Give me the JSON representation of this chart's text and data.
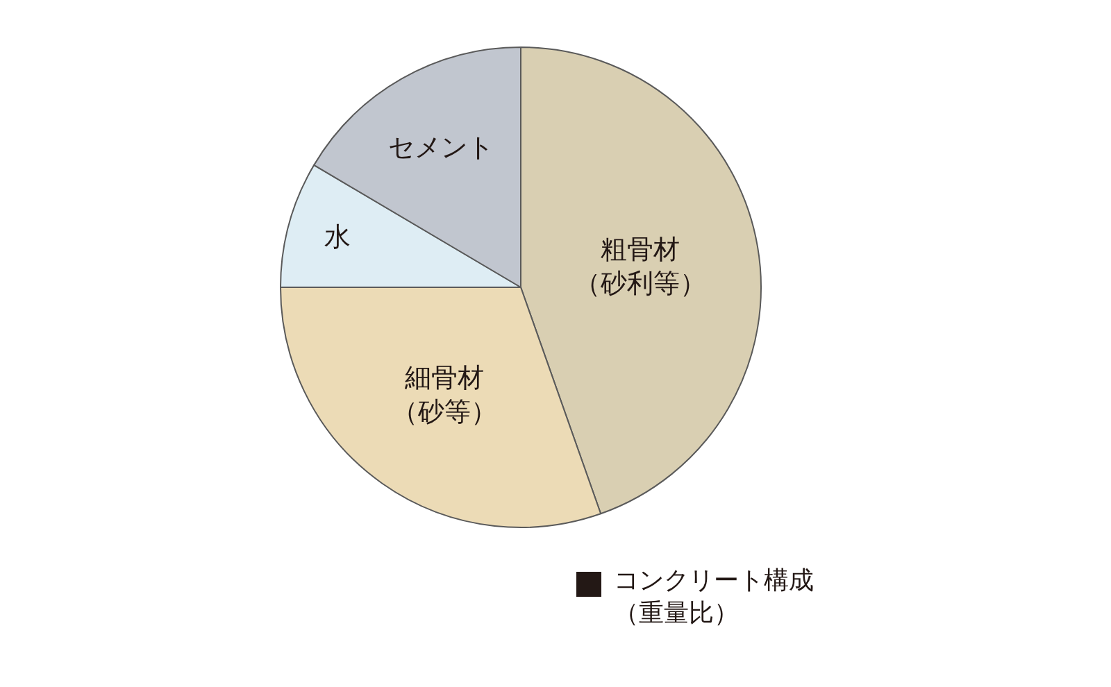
{
  "chart_data": {
    "type": "pie",
    "title": "コンクリート構成（重量比）",
    "categories": [
      "粗骨材（砂利等）",
      "細骨材（砂等）",
      "水",
      "セメント"
    ],
    "values": [
      44.6,
      30.4,
      8.5,
      16.5
    ],
    "colors": [
      "#d9cfb2",
      "#ecdbb6",
      "#deedf4",
      "#c1c6cf"
    ]
  }
}
